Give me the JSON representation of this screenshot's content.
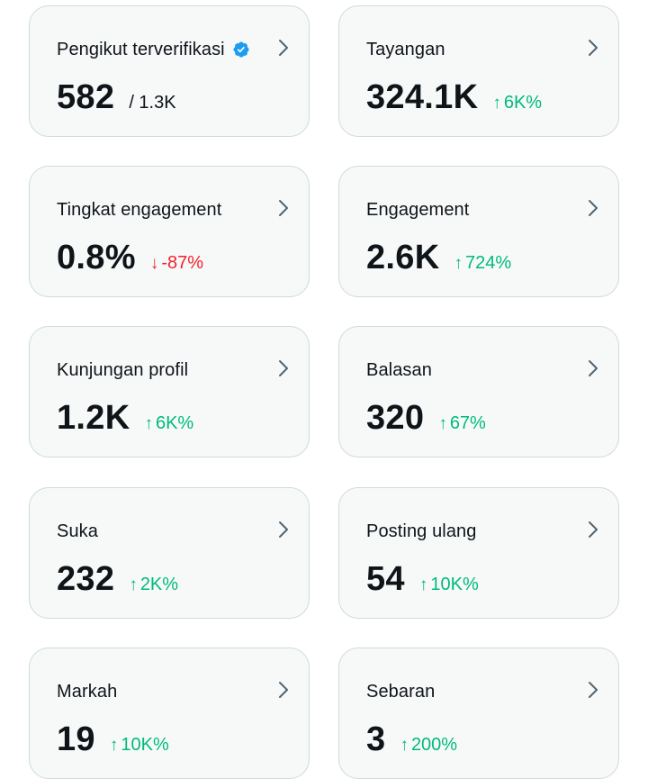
{
  "colors": {
    "card_bg": "#f7f9f9",
    "card_border": "#cfd9de",
    "text": "#0f1419",
    "positive": "#00ba7c",
    "negative": "#f4212e",
    "verified_blue": "#1d9bf0",
    "chevron": "#536471"
  },
  "cards": [
    {
      "label": "Pengikut terverifikasi",
      "value": "582",
      "secondary": "/ 1.3K",
      "change": "",
      "trend": "",
      "icon": "verified-badge-icon"
    },
    {
      "label": "Tayangan",
      "value": "324.1K",
      "secondary": "",
      "change": "6K%",
      "trend": "up"
    },
    {
      "label": "Tingkat engagement",
      "value": "0.8%",
      "secondary": "",
      "change": "-87%",
      "trend": "down"
    },
    {
      "label": "Engagement",
      "value": "2.6K",
      "secondary": "",
      "change": "724%",
      "trend": "up"
    },
    {
      "label": "Kunjungan profil",
      "value": "1.2K",
      "secondary": "",
      "change": "6K%",
      "trend": "up"
    },
    {
      "label": "Balasan",
      "value": "320",
      "secondary": "",
      "change": "67%",
      "trend": "up"
    },
    {
      "label": "Suka",
      "value": "232",
      "secondary": "",
      "change": "2K%",
      "trend": "up"
    },
    {
      "label": "Posting ulang",
      "value": "54",
      "secondary": "",
      "change": "10K%",
      "trend": "up"
    },
    {
      "label": "Markah",
      "value": "19",
      "secondary": "",
      "change": "10K%",
      "trend": "up"
    },
    {
      "label": "Sebaran",
      "value": "3",
      "secondary": "",
      "change": "200%",
      "trend": "up"
    }
  ]
}
